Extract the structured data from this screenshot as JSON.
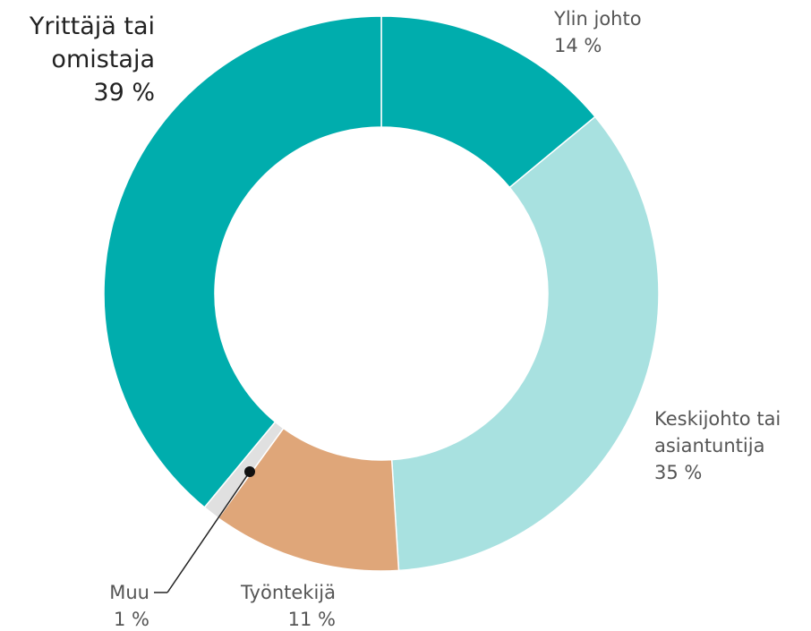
{
  "chart_data": {
    "type": "pie",
    "categories": [
      "Ylin johto",
      "Keskijohto tai asiantuntija",
      "Työntekijä",
      "Muu",
      "Yrittäjä tai omistaja"
    ],
    "values": [
      14,
      35,
      11,
      1,
      39
    ],
    "value_labels": [
      "14 %",
      "35 %",
      "11 %",
      "1 %",
      "39 %"
    ],
    "colors": [
      "#00adad",
      "#a8e1e0",
      "#dfa679",
      "#e0e0e0",
      "#00adad"
    ]
  }
}
